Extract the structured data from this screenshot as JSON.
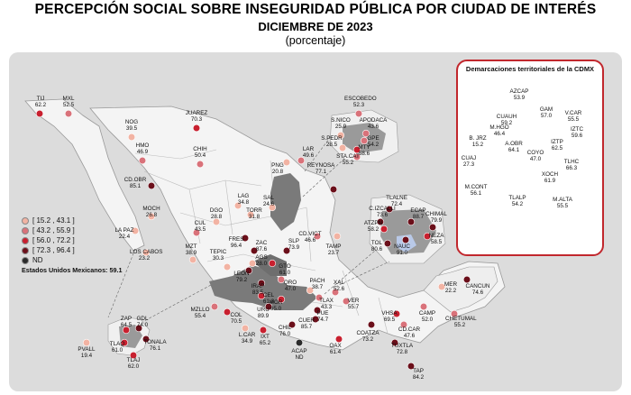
{
  "title": {
    "line1": "PERCEPCIÓN SOCIAL SOBRE INSEGURIDAD PÚBLICA POR CIUDAD DE INTERÉS",
    "line2": "DICIEMBRE DE 2023",
    "line3": "(porcentaje)"
  },
  "legend": [
    {
      "label": "[ 15.2 , 43.1 ]",
      "color": "#f2b3a3"
    },
    {
      "label": "[ 43.2 , 55.9 ]",
      "color": "#d9727a"
    },
    {
      "label": "[ 56.0 , 72.2 ]",
      "color": "#c8202f"
    },
    {
      "label": "[ 72.3 , 96.4 ]",
      "color": "#6b0f1a"
    },
    {
      "label": "ND",
      "color": "#2a2a2a"
    }
  ],
  "national": "Estados Unidos Mexicanos: 59.1",
  "cdmx": {
    "title": "Demarcaciones territoriales de la CDMX",
    "labels": [
      {
        "name": "AZCAP",
        "value": "53.9"
      },
      {
        "name": "GAM",
        "value": "57.0"
      },
      {
        "name": "CUAUH",
        "value": "59.2"
      },
      {
        "name": "V.CAR",
        "value": "55.5"
      },
      {
        "name": "M.HGO",
        "value": "46.4"
      },
      {
        "name": "IZTC",
        "value": "59.6"
      },
      {
        "name": "B. JRZ",
        "value": "15.2"
      },
      {
        "name": "A.OBR",
        "value": "64.1"
      },
      {
        "name": "COYO",
        "value": "47.0"
      },
      {
        "name": "IZTP",
        "value": "62.5"
      },
      {
        "name": "CUAJ",
        "value": "27.3"
      },
      {
        "name": "TLHC",
        "value": "66.3"
      },
      {
        "name": "XOCH",
        "value": "61.9"
      },
      {
        "name": "M.CONT",
        "value": "56.1"
      },
      {
        "name": "TLALP",
        "value": "54.2"
      },
      {
        "name": "M.ALTA",
        "value": "55.5"
      }
    ]
  },
  "cities": [
    {
      "name": "TIJ",
      "value": "62.2",
      "color": "#c8202f"
    },
    {
      "name": "MXL",
      "value": "52.5",
      "color": "#d9727a"
    },
    {
      "name": "NOG",
      "value": "39.5",
      "color": "#f2b3a3"
    },
    {
      "name": "HMO",
      "value": "46.9",
      "color": "#d9727a"
    },
    {
      "name": "JUAREZ",
      "value": "70.3",
      "color": "#c8202f"
    },
    {
      "name": "CHIH",
      "value": "50.4",
      "color": "#d9727a"
    },
    {
      "name": "CD.OBR",
      "value": "85.1",
      "color": "#6b0f1a"
    },
    {
      "name": "MOCH",
      "value": "26.8",
      "color": "#f2b3a3"
    },
    {
      "name": "LA PAZ",
      "value": "22.4",
      "color": "#f2b3a3"
    },
    {
      "name": "LOS CABOS",
      "value": "23.2",
      "color": "#f2b3a3"
    },
    {
      "name": "CUL",
      "value": "43.5",
      "color": "#d9727a"
    },
    {
      "name": "MZT",
      "value": "38.9",
      "color": "#f2b3a3"
    },
    {
      "name": "DGO",
      "value": "28.8",
      "color": "#f2b3a3"
    },
    {
      "name": "LAG",
      "value": "34.8",
      "color": "#f2b3a3"
    },
    {
      "name": "TORR",
      "value": "31.8",
      "color": "#f2b3a3"
    },
    {
      "name": "PNG",
      "value": "20.8",
      "color": "#f2b3a3"
    },
    {
      "name": "SAL",
      "value": "24.6",
      "color": "#f2b3a3"
    },
    {
      "name": "LAR",
      "value": "49.6",
      "color": "#d9727a"
    },
    {
      "name": "REYNOSA",
      "value": "77.1",
      "color": "#6b0f1a"
    },
    {
      "name": "ESCOBEDO",
      "value": "52.3",
      "color": "#d9727a"
    },
    {
      "name": "S.NICO",
      "value": "25.9",
      "color": "#f2b3a3"
    },
    {
      "name": "APODACA",
      "value": "43.6",
      "color": "#d9727a"
    },
    {
      "name": "GPE",
      "value": "54.2",
      "color": "#d9727a"
    },
    {
      "name": "S.PEDR",
      "value": "28.5",
      "color": "#f2b3a3"
    },
    {
      "name": "MTY",
      "value": "58.6",
      "color": "#c8202f"
    },
    {
      "name": "STA.CAT",
      "value": "55.2",
      "color": "#d9727a"
    },
    {
      "name": "FRES",
      "value": "96.4",
      "color": "#6b0f1a"
    },
    {
      "name": "ZAC",
      "value": "87.6",
      "color": "#6b0f1a"
    },
    {
      "name": "TEPIC",
      "value": "30.3",
      "color": "#f2b3a3"
    },
    {
      "name": "SLP",
      "value": "73.9",
      "color": "#6b0f1a"
    },
    {
      "name": "CD.VICT",
      "value": "46.6",
      "color": "#d9727a"
    },
    {
      "name": "TAMP",
      "value": "23.7",
      "color": "#f2b3a3"
    },
    {
      "name": "AGS",
      "value": "28.0",
      "color": "#f2b3a3"
    },
    {
      "name": "LEON",
      "value": "79.2",
      "color": "#6b0f1a"
    },
    {
      "name": "GTO",
      "value": "61.0",
      "color": "#c8202f"
    },
    {
      "name": "QRO",
      "value": "47.0",
      "color": "#d9727a"
    },
    {
      "name": "PACH",
      "value": "38.7",
      "color": "#f2b3a3"
    },
    {
      "name": "IRAP",
      "value": "83.5",
      "color": "#6b0f1a"
    },
    {
      "name": "CEL",
      "value": "61.8",
      "color": "#c8202f"
    },
    {
      "name": "MOR",
      "value": "65.0",
      "color": "#c8202f"
    },
    {
      "name": "URU",
      "value": "89.9",
      "color": "#6b0f1a"
    },
    {
      "name": "TLAX",
      "value": "43.3",
      "color": "#d9727a"
    },
    {
      "name": "XAL",
      "value": "52.6",
      "color": "#d9727a"
    },
    {
      "name": "VER",
      "value": "55.7",
      "color": "#d9727a"
    },
    {
      "name": "PUE",
      "value": "74.7",
      "color": "#6b0f1a"
    },
    {
      "name": "MZLLO",
      "value": "55.4",
      "color": "#d9727a"
    },
    {
      "name": "COL",
      "value": "70.5",
      "color": "#c8202f"
    },
    {
      "name": "L.CAR",
      "value": "34.9",
      "color": "#f2b3a3"
    },
    {
      "name": "IXT",
      "value": "65.2",
      "color": "#c8202f"
    },
    {
      "name": "CHIL",
      "value": "76.0",
      "color": "#6b0f1a"
    },
    {
      "name": "CUER",
      "value": "85.7",
      "color": "#6b0f1a"
    },
    {
      "name": "ACAP",
      "value": "ND",
      "color": "#2a2a2a"
    },
    {
      "name": "OAX",
      "value": "61.4",
      "color": "#c8202f"
    },
    {
      "name": "COATZA",
      "value": "73.2",
      "color": "#6b0f1a"
    },
    {
      "name": "VHSA",
      "value": "69.5",
      "color": "#c8202f"
    },
    {
      "name": "CAMP",
      "value": "52.0",
      "color": "#d9727a"
    },
    {
      "name": "CD.CAR",
      "value": "47.6",
      "color": "#d9727a"
    },
    {
      "name": "TUXTLA",
      "value": "72.8",
      "color": "#6b0f1a"
    },
    {
      "name": "TAP",
      "value": "84.2",
      "color": "#6b0f1a"
    },
    {
      "name": "MER",
      "value": "22.2",
      "color": "#f2b3a3"
    },
    {
      "name": "CANCUN",
      "value": "74.6",
      "color": "#6b0f1a"
    },
    {
      "name": "CHETUMAL",
      "value": "55.2",
      "color": "#d9727a"
    },
    {
      "name": "TLALNE",
      "value": "72.4",
      "color": "#6b0f1a"
    },
    {
      "name": "C.IZCALLI",
      "value": "73.6",
      "color": "#6b0f1a"
    },
    {
      "name": "ECAP",
      "value": "88.7",
      "color": "#6b0f1a"
    },
    {
      "name": "CHIMAL",
      "value": "79.9",
      "color": "#6b0f1a"
    },
    {
      "name": "ATZPN",
      "value": "58.2",
      "color": "#c8202f"
    },
    {
      "name": "NEZA",
      "value": "58.5",
      "color": "#c8202f"
    },
    {
      "name": "TOL",
      "value": "80.6",
      "color": "#6b0f1a"
    },
    {
      "name": "NAUC",
      "value": "91.0",
      "color": "#6b0f1a"
    },
    {
      "name": "ZAP",
      "value": "64.5",
      "color": "#c8202f"
    },
    {
      "name": "GDL",
      "value": "74.0",
      "color": "#6b0f1a"
    },
    {
      "name": "TONALA",
      "value": "76.1",
      "color": "#6b0f1a"
    },
    {
      "name": "TLAQ",
      "value": "61.0",
      "color": "#c8202f"
    },
    {
      "name": "TLAJ",
      "value": "62.0",
      "color": "#c8202f"
    },
    {
      "name": "PVALL",
      "value": "19.4",
      "color": "#f2b3a3"
    }
  ]
}
